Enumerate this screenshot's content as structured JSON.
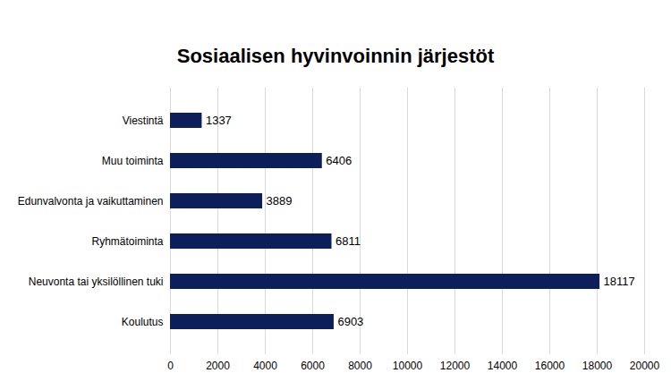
{
  "chart_data": {
    "type": "bar",
    "orientation": "horizontal",
    "title": "Sosiaalisen hyvinvoinnin järjestöt",
    "categories": [
      "Viestintä",
      "Muu toiminta",
      "Edunvalvonta ja vaikuttaminen",
      "Ryhmätoiminta",
      "Neuvonta tai yksilöllinen tuki",
      "Koulutus"
    ],
    "values": [
      1337,
      6406,
      3889,
      6811,
      18117,
      6903
    ],
    "color": "#0c1f5b",
    "xlim": [
      0,
      20000
    ],
    "xticks": [
      0,
      2000,
      4000,
      6000,
      8000,
      10000,
      12000,
      14000,
      16000,
      18000,
      20000
    ],
    "grid": true,
    "data_labels": true
  }
}
